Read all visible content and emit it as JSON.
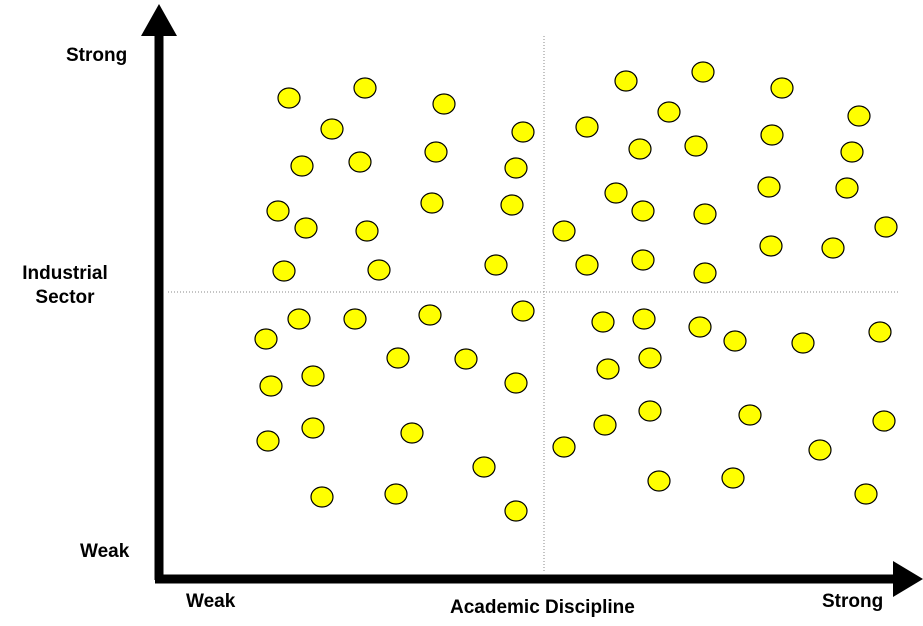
{
  "y_axis": {
    "title_line1": "Industrial",
    "title_line2": "Sector",
    "high_label": "Strong",
    "low_label": "Weak"
  },
  "x_axis": {
    "title": "Academic Discipline",
    "low_label": "Weak",
    "high_label": "Strong"
  },
  "colors": {
    "dot_fill": "#ffff00",
    "dot_stroke": "#000000",
    "axis": "#000000",
    "divider": "#888888"
  },
  "chart_data": {
    "type": "scatter",
    "quadrant_dividers": true,
    "points": [
      [
        289,
        98
      ],
      [
        365,
        88
      ],
      [
        444,
        104
      ],
      [
        332,
        129
      ],
      [
        523,
        132
      ],
      [
        302,
        166
      ],
      [
        360,
        162
      ],
      [
        436,
        152
      ],
      [
        516,
        168
      ],
      [
        278,
        211
      ],
      [
        306,
        228
      ],
      [
        367,
        231
      ],
      [
        432,
        203
      ],
      [
        512,
        205
      ],
      [
        284,
        271
      ],
      [
        379,
        270
      ],
      [
        496,
        265
      ],
      [
        626,
        81
      ],
      [
        703,
        72
      ],
      [
        782,
        88
      ],
      [
        669,
        112
      ],
      [
        587,
        127
      ],
      [
        640,
        149
      ],
      [
        696,
        146
      ],
      [
        772,
        135
      ],
      [
        859,
        116
      ],
      [
        852,
        152
      ],
      [
        616,
        193
      ],
      [
        643,
        211
      ],
      [
        705,
        214
      ],
      [
        769,
        187
      ],
      [
        847,
        188
      ],
      [
        564,
        231
      ],
      [
        587,
        265
      ],
      [
        643,
        260
      ],
      [
        705,
        273
      ],
      [
        771,
        246
      ],
      [
        833,
        248
      ],
      [
        886,
        227
      ],
      [
        266,
        339
      ],
      [
        299,
        319
      ],
      [
        355,
        319
      ],
      [
        430,
        315
      ],
      [
        523,
        311
      ],
      [
        271,
        386
      ],
      [
        313,
        376
      ],
      [
        398,
        358
      ],
      [
        466,
        359
      ],
      [
        516,
        383
      ],
      [
        268,
        441
      ],
      [
        313,
        428
      ],
      [
        412,
        433
      ],
      [
        484,
        467
      ],
      [
        322,
        497
      ],
      [
        396,
        494
      ],
      [
        516,
        511
      ],
      [
        603,
        322
      ],
      [
        644,
        319
      ],
      [
        700,
        327
      ],
      [
        735,
        341
      ],
      [
        803,
        343
      ],
      [
        880,
        332
      ],
      [
        608,
        369
      ],
      [
        650,
        358
      ],
      [
        605,
        425
      ],
      [
        650,
        411
      ],
      [
        750,
        415
      ],
      [
        884,
        421
      ],
      [
        564,
        447
      ],
      [
        659,
        481
      ],
      [
        733,
        478
      ],
      [
        820,
        450
      ],
      [
        866,
        494
      ]
    ]
  }
}
